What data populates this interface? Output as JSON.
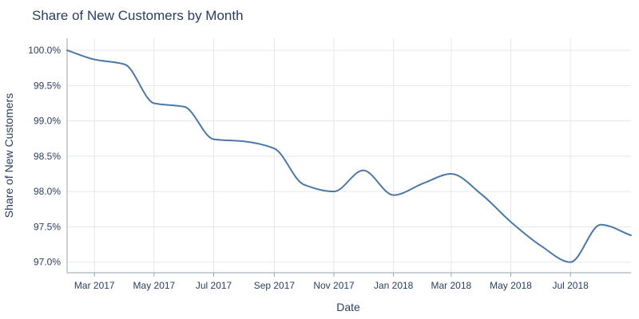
{
  "chart_data": {
    "type": "line",
    "title": "Share of New Customers by Month",
    "xlabel": "Date",
    "ylabel": "Share of New Customers",
    "x_tick_labels": [
      "Mar 2017",
      "May 2017",
      "Jul 2017",
      "Sep 2017",
      "Nov 2017",
      "Jan 2018",
      "Mar 2018",
      "May 2018",
      "Jul 2018"
    ],
    "x_tick_dates": [
      "2017-03-01",
      "2017-05-01",
      "2017-07-01",
      "2017-09-01",
      "2017-11-01",
      "2018-01-01",
      "2018-03-01",
      "2018-05-01",
      "2018-07-01"
    ],
    "y_tick_labels": [
      "100.0%",
      "99.5%",
      "99.0%",
      "98.5%",
      "98.0%",
      "97.5%",
      "97.0%"
    ],
    "y_tick_values": [
      100.0,
      99.5,
      99.0,
      98.5,
      98.0,
      97.5,
      97.0
    ],
    "xlim": [
      "2017-02-01",
      "2018-09-01"
    ],
    "ylim": [
      96.85,
      100.17
    ],
    "grid": true,
    "line_shape": "spline",
    "series": [
      {
        "color": "#4c78a8",
        "x": [
          "2017-02-01",
          "2017-03-01",
          "2017-04-01",
          "2017-05-01",
          "2017-06-01",
          "2017-07-01",
          "2017-08-01",
          "2017-09-01",
          "2017-10-01",
          "2017-11-01",
          "2017-12-01",
          "2018-01-01",
          "2018-02-01",
          "2018-03-01",
          "2018-04-01",
          "2018-05-01",
          "2018-06-01",
          "2018-07-01",
          "2018-08-01",
          "2018-09-01"
        ],
        "values": [
          100.0,
          99.87,
          99.8,
          99.25,
          99.2,
          98.74,
          98.71,
          98.61,
          98.1,
          98.0,
          98.3,
          97.95,
          98.12,
          98.25,
          97.96,
          97.57,
          97.23,
          97.0,
          97.53,
          97.38
        ]
      }
    ]
  }
}
